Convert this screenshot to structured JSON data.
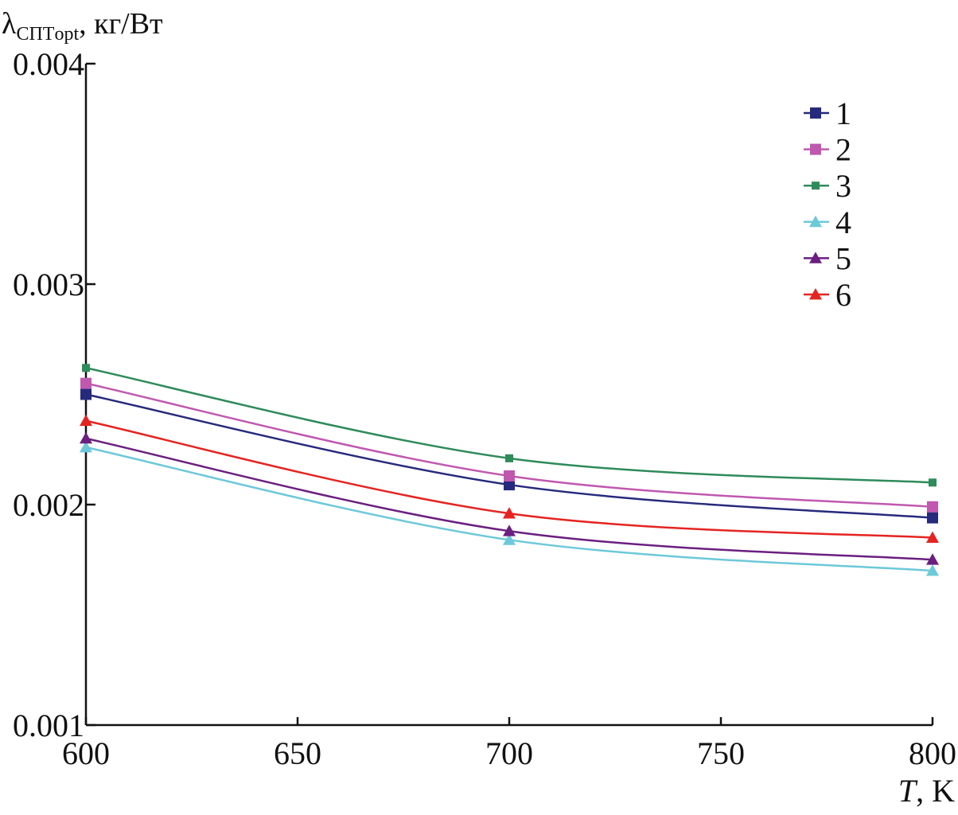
{
  "chart_data": {
    "type": "line",
    "ylabel": {
      "symbol": "λ",
      "subscript": "СПТopt",
      "unit": ", кг/Вт"
    },
    "xlabel": {
      "var": "T",
      "unit": ", K"
    },
    "xlim": [
      600,
      800
    ],
    "ylim": [
      0.001,
      0.004
    ],
    "x_ticks": [
      "600",
      "650",
      "700",
      "750",
      "800"
    ],
    "y_ticks": [
      "0.001",
      "0.002",
      "0.003",
      "0.004"
    ],
    "x": [
      600,
      700,
      800
    ],
    "series": [
      {
        "name": "1",
        "marker": "square",
        "color": "#262a7c",
        "values": [
          0.0025,
          0.00209,
          0.00194
        ]
      },
      {
        "name": "2",
        "marker": "square",
        "color": "#c058b0",
        "values": [
          0.00255,
          0.00213,
          0.00199
        ]
      },
      {
        "name": "3",
        "marker": "square-small",
        "color": "#2e8b5a",
        "values": [
          0.00262,
          0.00221,
          0.0021
        ]
      },
      {
        "name": "4",
        "marker": "triangle",
        "color": "#6cc9d9",
        "values": [
          0.00226,
          0.00184,
          0.0017
        ]
      },
      {
        "name": "5",
        "marker": "triangle",
        "color": "#6b1f80",
        "values": [
          0.0023,
          0.00188,
          0.00175
        ]
      },
      {
        "name": "6",
        "marker": "triangle",
        "color": "#e52421",
        "values": [
          0.00238,
          0.00196,
          0.00185
        ]
      }
    ],
    "legend_position": "top-right",
    "grid": false
  }
}
